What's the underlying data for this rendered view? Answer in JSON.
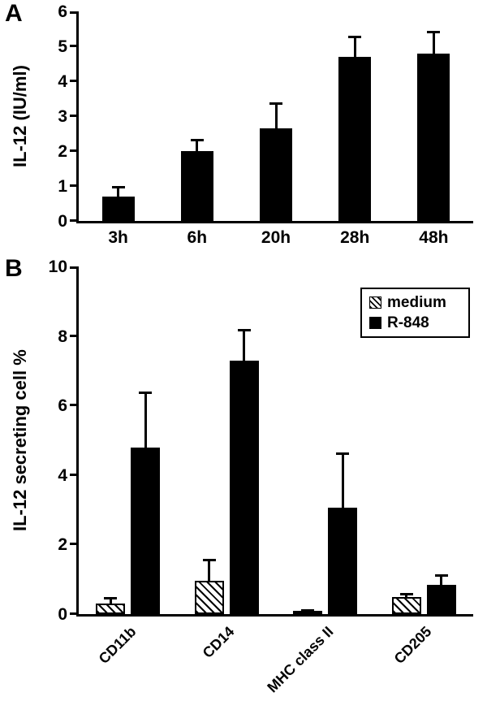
{
  "figure": {
    "panels": [
      {
        "label": "A"
      },
      {
        "label": "B"
      }
    ]
  },
  "chart_data": [
    {
      "type": "bar",
      "panel": "A",
      "title": "",
      "xlabel": "",
      "ylabel": "IL-12 (IU/ml)",
      "ylim": [
        0,
        6
      ],
      "yticks": [
        0,
        1,
        2,
        3,
        4,
        5,
        6
      ],
      "categories": [
        "3h",
        "6h",
        "20h",
        "28h",
        "48h"
      ],
      "values": [
        0.7,
        2.0,
        2.65,
        4.7,
        4.8
      ],
      "errors_upper": [
        0.3,
        0.35,
        0.75,
        0.6,
        0.65
      ],
      "bar_color": "#000000",
      "rotate_labels": false,
      "grid": false,
      "legend": false
    },
    {
      "type": "bar",
      "panel": "B",
      "title": "",
      "xlabel": "",
      "ylabel": "IL-12 secreting cell %",
      "ylim": [
        0,
        10
      ],
      "yticks": [
        0,
        2,
        4,
        6,
        8,
        10
      ],
      "categories": [
        "CD11b",
        "CD14",
        "MHC class II",
        "CD205"
      ],
      "series": [
        {
          "name": "medium",
          "style": "hatched",
          "values": [
            0.3,
            0.95,
            0.1,
            0.5
          ],
          "errors_upper": [
            0.2,
            0.65,
            0.05,
            0.1
          ]
        },
        {
          "name": "R-848",
          "style": "solid",
          "values": [
            4.8,
            7.3,
            3.05,
            0.85
          ],
          "errors_upper": [
            1.6,
            0.9,
            1.6,
            0.3
          ]
        }
      ],
      "colors": {
        "solid": "#000000",
        "hatch_fg": "#000000",
        "hatch_bg": "#ffffff"
      },
      "rotate_labels": true,
      "grid": false,
      "legend_position": "top-right"
    }
  ]
}
